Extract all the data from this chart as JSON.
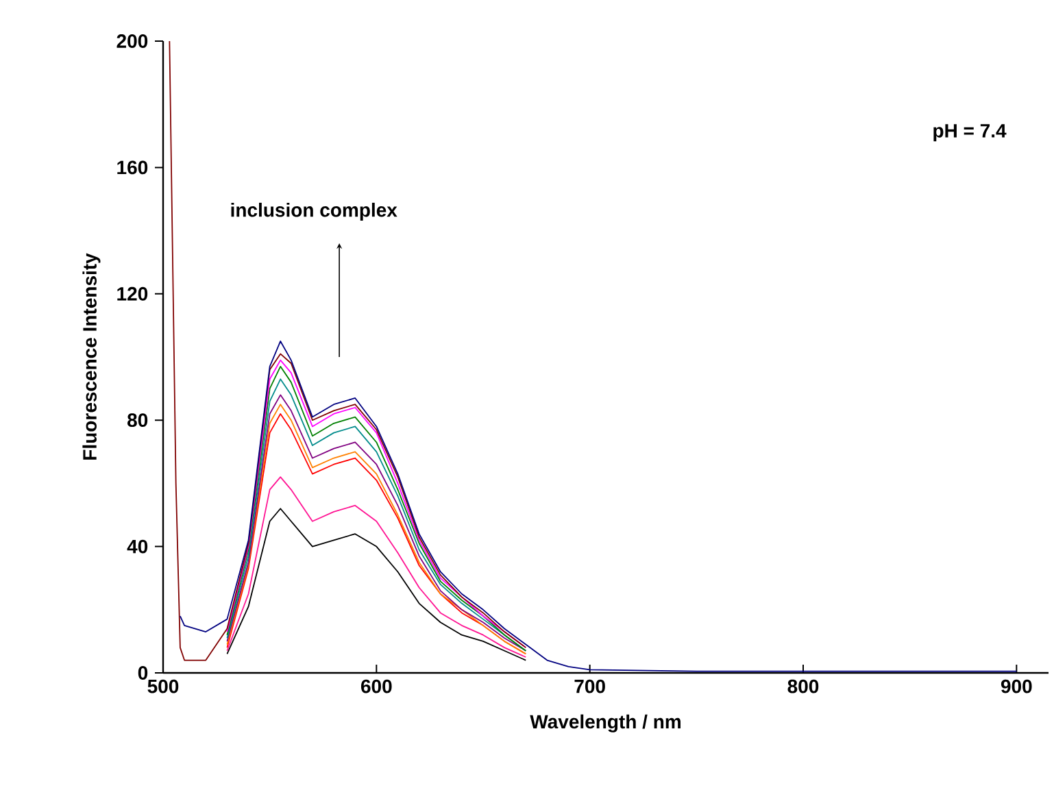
{
  "chart_data": {
    "type": "line",
    "xlabel": "Wavelength / nm",
    "ylabel": "Fluorescence Intensity",
    "annotations": [
      "pH = 7.4",
      "inclusion complex"
    ],
    "xlim": [
      500,
      915
    ],
    "ylim": [
      0,
      200
    ],
    "xticks": [
      500,
      600,
      700,
      800,
      900
    ],
    "yticks": [
      0,
      40,
      80,
      120,
      160,
      200
    ],
    "x": [
      503,
      506,
      508,
      510,
      520,
      530,
      540,
      550,
      555,
      560,
      570,
      580,
      590,
      600,
      610,
      620,
      630,
      640,
      650,
      660,
      670,
      680,
      690,
      700,
      750,
      800,
      900
    ],
    "series": [
      {
        "color": "#000000",
        "values": [
          null,
          null,
          null,
          null,
          null,
          6,
          21,
          48,
          52,
          48,
          40,
          42,
          44,
          40,
          32,
          22,
          16,
          12,
          10,
          7,
          4,
          null,
          null,
          null,
          null,
          null,
          null
        ]
      },
      {
        "color": "#ff1493",
        "values": [
          null,
          null,
          null,
          null,
          null,
          7,
          25,
          58,
          62,
          58,
          48,
          51,
          53,
          48,
          38,
          27,
          19,
          15,
          12,
          8,
          5,
          null,
          null,
          null,
          null,
          null,
          null
        ]
      },
      {
        "color": "#ff0000",
        "values": [
          null,
          null,
          null,
          null,
          null,
          8,
          33,
          76,
          82,
          77,
          63,
          66,
          68,
          61,
          49,
          34,
          25,
          19,
          15,
          10,
          6,
          null,
          null,
          null,
          null,
          null,
          null
        ]
      },
      {
        "color": "#ff8000",
        "values": [
          null,
          null,
          null,
          null,
          null,
          9,
          34,
          79,
          85,
          80,
          65,
          68,
          70,
          63,
          50,
          35,
          25,
          20,
          15,
          10,
          6,
          null,
          null,
          null,
          null,
          null,
          null
        ]
      },
      {
        "color": "#800080",
        "values": [
          null,
          null,
          null,
          null,
          null,
          10,
          35,
          82,
          88,
          83,
          68,
          71,
          73,
          66,
          53,
          37,
          26,
          20,
          16,
          11,
          7,
          null,
          null,
          null,
          null,
          null,
          null
        ]
      },
      {
        "color": "#008b8b",
        "values": [
          null,
          null,
          null,
          null,
          null,
          11,
          37,
          86,
          93,
          88,
          72,
          76,
          78,
          70,
          56,
          39,
          28,
          22,
          17,
          12,
          7,
          null,
          null,
          null,
          null,
          null,
          null
        ]
      },
      {
        "color": "#008000",
        "values": [
          null,
          null,
          null,
          null,
          null,
          12,
          39,
          90,
          97,
          92,
          75,
          79,
          81,
          73,
          58,
          41,
          29,
          23,
          18,
          12,
          7,
          null,
          null,
          null,
          null,
          null,
          null
        ]
      },
      {
        "color": "#ff00ff",
        "values": [
          null,
          null,
          null,
          null,
          null,
          13,
          40,
          93,
          99,
          95,
          78,
          82,
          84,
          76,
          60,
          42,
          30,
          24,
          18,
          13,
          8,
          null,
          null,
          null,
          null,
          null,
          null
        ]
      },
      {
        "color": "#800000",
        "values": [
          200,
          60,
          8,
          4,
          4,
          14,
          41,
          96,
          101,
          98,
          80,
          83,
          85,
          77,
          62,
          43,
          31,
          24,
          19,
          13,
          8,
          null,
          null,
          null,
          null,
          null,
          null
        ]
      },
      {
        "color": "#000080",
        "values": [
          null,
          null,
          18,
          15,
          13,
          17,
          42,
          97,
          105,
          99,
          81,
          85,
          87,
          78,
          63,
          44,
          32,
          25,
          20,
          14,
          9,
          4,
          2,
          1,
          0.5,
          0.5,
          0.5
        ]
      }
    ]
  }
}
